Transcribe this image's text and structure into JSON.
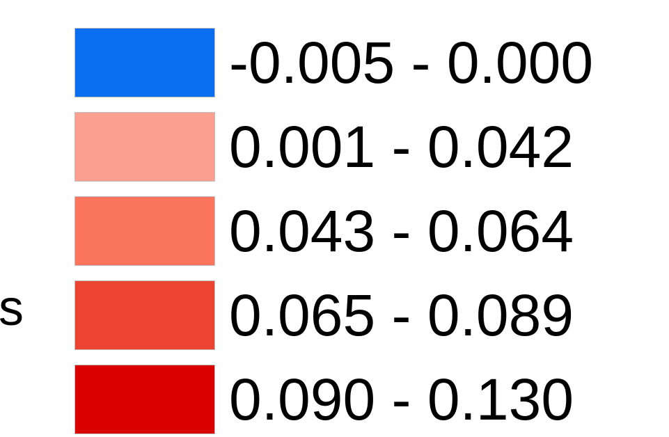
{
  "side_label": "s",
  "chart_data": {
    "type": "legend",
    "title": "",
    "entries": [
      {
        "label": "-0.005 - 0.000",
        "min": -0.005,
        "max": 0.0,
        "color": "#0a6ef0"
      },
      {
        "label": "0.001 - 0.042",
        "min": 0.001,
        "max": 0.042,
        "color": "#fc9f90"
      },
      {
        "label": "0.043 - 0.064",
        "min": 0.043,
        "max": 0.064,
        "color": "#fb745c"
      },
      {
        "label": "0.065 - 0.089",
        "min": 0.065,
        "max": 0.089,
        "color": "#ec4433"
      },
      {
        "label": "0.090 - 0.130",
        "min": 0.09,
        "max": 0.13,
        "color": "#db0000"
      }
    ]
  }
}
